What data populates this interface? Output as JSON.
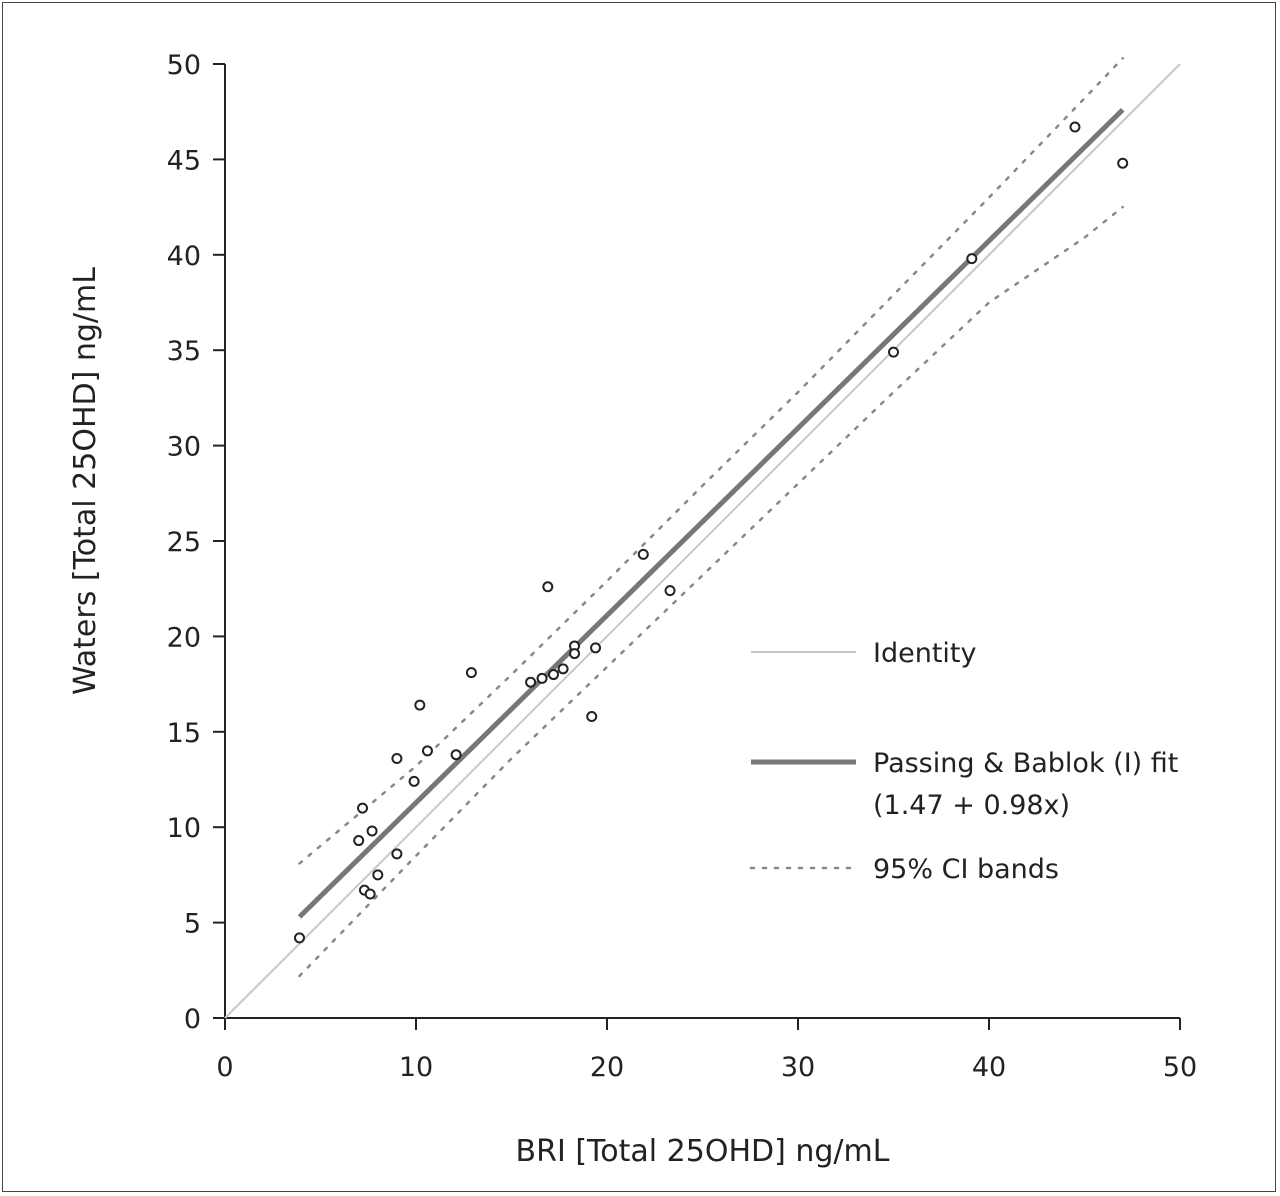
{
  "chart_data": {
    "type": "scatter",
    "xlabel": "BRI [Total 25OHD] ng/mL",
    "ylabel": "Waters [Total 25OHD] ng/mL",
    "xlim": [
      0,
      50
    ],
    "ylim": [
      0,
      50
    ],
    "x_ticks": [
      "0",
      "10",
      "20",
      "30",
      "40",
      "50"
    ],
    "y_ticks": [
      "0",
      "5",
      "10",
      "15",
      "20",
      "25",
      "30",
      "35",
      "40",
      "45",
      "50"
    ],
    "grid": false,
    "legend_position": "right",
    "points": [
      {
        "x": 3.9,
        "y": 4.2
      },
      {
        "x": 7.0,
        "y": 9.3
      },
      {
        "x": 7.2,
        "y": 11.0
      },
      {
        "x": 7.3,
        "y": 6.7
      },
      {
        "x": 7.6,
        "y": 6.5
      },
      {
        "x": 7.7,
        "y": 9.8
      },
      {
        "x": 8.0,
        "y": 7.5
      },
      {
        "x": 9.0,
        "y": 8.6
      },
      {
        "x": 9.0,
        "y": 13.6
      },
      {
        "x": 9.9,
        "y": 12.4
      },
      {
        "x": 10.2,
        "y": 16.4
      },
      {
        "x": 10.6,
        "y": 14.0
      },
      {
        "x": 12.1,
        "y": 13.8
      },
      {
        "x": 12.9,
        "y": 18.1
      },
      {
        "x": 16.0,
        "y": 17.6
      },
      {
        "x": 16.6,
        "y": 17.8
      },
      {
        "x": 16.9,
        "y": 22.6
      },
      {
        "x": 17.2,
        "y": 18.0
      },
      {
        "x": 17.7,
        "y": 18.3
      },
      {
        "x": 18.3,
        "y": 19.5
      },
      {
        "x": 18.3,
        "y": 19.1
      },
      {
        "x": 19.2,
        "y": 15.8
      },
      {
        "x": 19.4,
        "y": 19.4
      },
      {
        "x": 21.9,
        "y": 24.3
      },
      {
        "x": 23.3,
        "y": 22.4
      },
      {
        "x": 35.0,
        "y": 34.9
      },
      {
        "x": 39.1,
        "y": 39.8
      },
      {
        "x": 44.5,
        "y": 46.7
      },
      {
        "x": 47.0,
        "y": 44.8
      }
    ],
    "series": [
      {
        "name": "Identity",
        "style": "solid-thin",
        "color": "#c8c8c8",
        "x": [
          0,
          50
        ],
        "y": [
          0,
          50
        ]
      },
      {
        "name": "Passing & Bablok (I) fit",
        "name_line2": "(1.47 + 0.98x)",
        "style": "solid-thick",
        "color": "#777777",
        "x": [
          3.9,
          47.0
        ],
        "y": [
          5.3,
          47.6
        ]
      },
      {
        "name": "95% CI bands",
        "style": "dotted",
        "color": "#888888",
        "upper": {
          "x": [
            3.9,
            10,
            15,
            20,
            25,
            30,
            35,
            40,
            45,
            47
          ],
          "y": [
            8.1,
            13.2,
            18.0,
            22.9,
            27.9,
            32.8,
            37.9,
            43.0,
            48.2,
            50.3
          ]
        },
        "lower": {
          "x": [
            3.9,
            10,
            15,
            20,
            25,
            30,
            35,
            40,
            45,
            47
          ],
          "y": [
            2.2,
            8.5,
            13.6,
            18.4,
            23.2,
            28.0,
            32.8,
            37.5,
            40.9,
            42.5
          ]
        }
      }
    ],
    "colors": {
      "points": "#222222",
      "axis": "#222222"
    }
  }
}
